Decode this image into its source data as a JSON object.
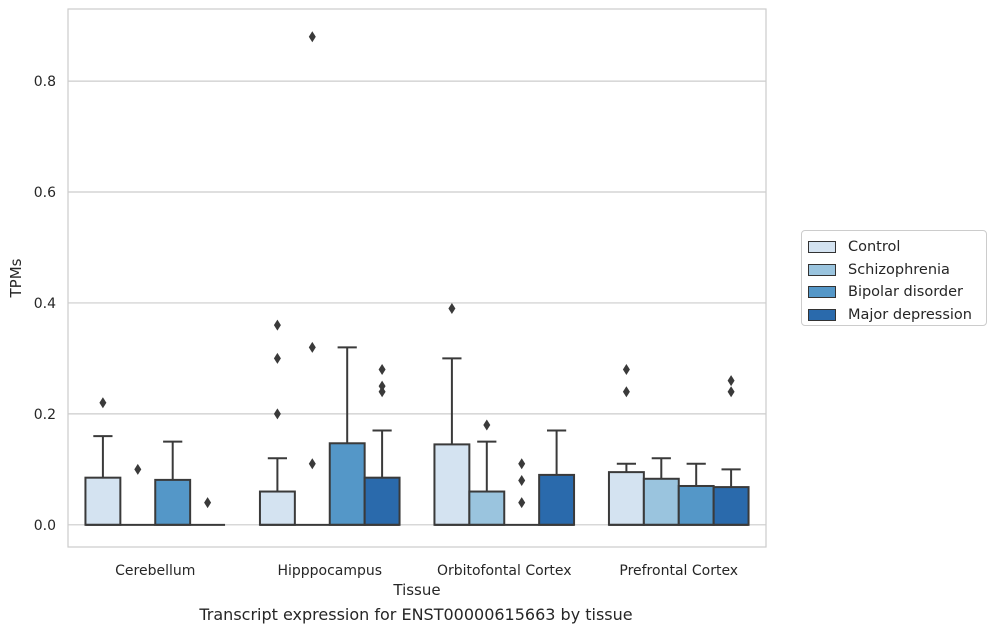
{
  "chart_data": {
    "type": "box",
    "xlabel": "Tissue",
    "ylabel": "TPMs",
    "caption": "Transcript expression for ENST00000615663 by tissue",
    "ylim": [
      -0.04,
      0.93
    ],
    "yticks": [
      0.0,
      0.2,
      0.4,
      0.6,
      0.8
    ],
    "ytick_labels": [
      "0.0",
      "0.2",
      "0.4",
      "0.6",
      "0.8"
    ],
    "grid": "horizontal",
    "legend_position": "right-center",
    "categories": [
      "Cerebellum",
      "Hipppocampus",
      "Orbitofontal Cortex",
      "Prefrontal Cortex"
    ],
    "series": [
      {
        "name": "Control",
        "color": "#d4e3f1",
        "boxes": [
          {
            "q1": 0.0,
            "median": 0.0,
            "q3": 0.085,
            "whisker_low": 0.0,
            "whisker_high": 0.16,
            "outliers": [
              0.22
            ]
          },
          {
            "q1": 0.0,
            "median": 0.0,
            "q3": 0.06,
            "whisker_low": 0.0,
            "whisker_high": 0.12,
            "outliers": [
              0.2,
              0.3,
              0.36
            ]
          },
          {
            "q1": 0.0,
            "median": 0.0,
            "q3": 0.145,
            "whisker_low": 0.0,
            "whisker_high": 0.3,
            "outliers": [
              0.39
            ]
          },
          {
            "q1": 0.0,
            "median": 0.0,
            "q3": 0.095,
            "whisker_low": 0.0,
            "whisker_high": 0.11,
            "outliers": [
              0.24,
              0.28
            ]
          }
        ]
      },
      {
        "name": "Schizophrenia",
        "color": "#9ac4de",
        "boxes": [
          {
            "q1": 0.0,
            "median": 0.0,
            "q3": 0.0,
            "whisker_low": 0.0,
            "whisker_high": 0.0,
            "outliers": [
              0.1
            ]
          },
          {
            "q1": 0.0,
            "median": 0.0,
            "q3": 0.0,
            "whisker_low": 0.0,
            "whisker_high": 0.0,
            "outliers": [
              0.11,
              0.32,
              0.88
            ]
          },
          {
            "q1": 0.0,
            "median": 0.0,
            "q3": 0.06,
            "whisker_low": 0.0,
            "whisker_high": 0.15,
            "outliers": [
              0.18
            ]
          },
          {
            "q1": 0.0,
            "median": 0.0,
            "q3": 0.083,
            "whisker_low": 0.0,
            "whisker_high": 0.12,
            "outliers": []
          }
        ]
      },
      {
        "name": "Bipolar disorder",
        "color": "#5497c8",
        "boxes": [
          {
            "q1": 0.0,
            "median": 0.0,
            "q3": 0.081,
            "whisker_low": 0.0,
            "whisker_high": 0.15,
            "outliers": []
          },
          {
            "q1": 0.0,
            "median": 0.0,
            "q3": 0.147,
            "whisker_low": 0.0,
            "whisker_high": 0.32,
            "outliers": []
          },
          {
            "q1": 0.0,
            "median": 0.0,
            "q3": 0.0,
            "whisker_low": 0.0,
            "whisker_high": 0.0,
            "outliers": [
              0.04,
              0.08,
              0.11
            ]
          },
          {
            "q1": 0.0,
            "median": 0.0,
            "q3": 0.07,
            "whisker_low": 0.0,
            "whisker_high": 0.11,
            "outliers": []
          }
        ]
      },
      {
        "name": "Major depression",
        "color": "#2a6aac",
        "boxes": [
          {
            "q1": 0.0,
            "median": 0.0,
            "q3": 0.0,
            "whisker_low": 0.0,
            "whisker_high": 0.0,
            "outliers": [
              0.04
            ]
          },
          {
            "q1": 0.0,
            "median": 0.0,
            "q3": 0.085,
            "whisker_low": 0.0,
            "whisker_high": 0.17,
            "outliers": [
              0.24,
              0.25,
              0.28
            ]
          },
          {
            "q1": 0.0,
            "median": 0.0,
            "q3": 0.09,
            "whisker_low": 0.0,
            "whisker_high": 0.17,
            "outliers": []
          },
          {
            "q1": 0.0,
            "median": 0.0,
            "q3": 0.068,
            "whisker_low": 0.0,
            "whisker_high": 0.1,
            "outliers": [
              0.24,
              0.26
            ]
          }
        ]
      }
    ]
  }
}
